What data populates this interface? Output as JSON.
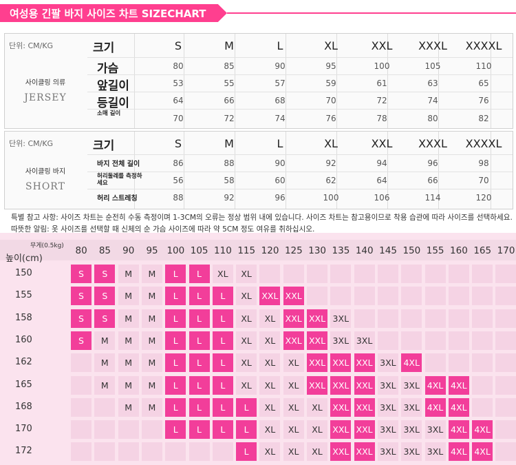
{
  "header": {
    "title": "여성용 긴팔 바지 사이즈 차트 SIZECHART"
  },
  "jersey": {
    "unit": "단위: CM/KG",
    "group_ko": "사이클링 의류",
    "group_en": "JERSEY",
    "size_label": "크기",
    "sizes": [
      "S",
      "M",
      "L",
      "XL",
      "XXL",
      "XXXL",
      "XXXXL"
    ],
    "rows": [
      {
        "label": "가슴",
        "values": [
          "80",
          "85",
          "90",
          "95",
          "100",
          "105",
          "110"
        ]
      },
      {
        "label": "앞길이",
        "values": [
          "53",
          "55",
          "57",
          "59",
          "61",
          "63",
          "65"
        ]
      },
      {
        "label": "등길이",
        "values": [
          "64",
          "66",
          "68",
          "70",
          "72",
          "74",
          "76"
        ]
      },
      {
        "label": "소매 길이",
        "values": [
          "70",
          "72",
          "74",
          "76",
          "78",
          "80",
          "82"
        ]
      }
    ]
  },
  "short": {
    "unit": "단위: CM/KG",
    "group_ko": "사이클링 바지",
    "group_en": "SHORT",
    "size_label": "크기",
    "sizes": [
      "S",
      "M",
      "L",
      "XL",
      "XXL",
      "XXXL",
      "XXXXL"
    ],
    "rows": [
      {
        "label": "바지 전체 길이",
        "values": [
          "86",
          "88",
          "90",
          "92",
          "94",
          "96",
          "98"
        ]
      },
      {
        "label": "허리둘레를 측정하세요",
        "values": [
          "56",
          "58",
          "60",
          "62",
          "64",
          "66",
          "70"
        ]
      },
      {
        "label": "허리 스트레칭",
        "values": [
          "88",
          "92",
          "96",
          "100",
          "106",
          "114",
          "120"
        ]
      }
    ]
  },
  "note": "특별 참고 사항: 사이즈 차트는 순전히 수동 측정이며 1-3CM의 오류는 정상 범위 내에 있습니다. 사이즈 차트는 참고용이므로 착용 습관에 따라 사이즈를 선택하세요.  따뜻한 알림: 옷 사이즈를 선택할 때 신체의 순 가슴 사이즈에 따라 약 5CM 정도 여유를 취하십시오.",
  "grid": {
    "weight_label": "무게(0.5kg)",
    "height_label": "높이(cm)",
    "weights": [
      "80",
      "85",
      "90",
      "95",
      "100",
      "105",
      "110",
      "115",
      "120",
      "125",
      "130",
      "135",
      "140",
      "145",
      "150",
      "155",
      "160",
      "165",
      "170"
    ],
    "rows": [
      {
        "height": "150",
        "cells": [
          "S",
          "S",
          "M",
          "M",
          "L",
          "L",
          "XL",
          "XL",
          "",
          "",
          "",
          "",
          "",
          "",
          "",
          "",
          "",
          "",
          ""
        ]
      },
      {
        "height": "155",
        "cells": [
          "S",
          "S",
          "M",
          "M",
          "L",
          "L",
          "L",
          "XL",
          "XXL",
          "XXL",
          "",
          "",
          "",
          "",
          "",
          "",
          "",
          "",
          ""
        ]
      },
      {
        "height": "158",
        "cells": [
          "S",
          "S",
          "M",
          "M",
          "L",
          "L",
          "L",
          "XL",
          "XL",
          "XXL",
          "XXL",
          "3XL",
          "",
          "",
          "",
          "",
          "",
          "",
          ""
        ]
      },
      {
        "height": "160",
        "cells": [
          "S",
          "M",
          "M",
          "M",
          "L",
          "L",
          "L",
          "XL",
          "XL",
          "XXL",
          "XXL",
          "3XL",
          "3XL",
          "",
          "",
          "",
          "",
          "",
          ""
        ]
      },
      {
        "height": "162",
        "cells": [
          "",
          "M",
          "M",
          "M",
          "L",
          "L",
          "L",
          "XL",
          "XL",
          "XL",
          "XXL",
          "XXL",
          "XXL",
          "3XL",
          "4XL",
          "",
          "",
          "",
          ""
        ]
      },
      {
        "height": "165",
        "cells": [
          "",
          "M",
          "M",
          "M",
          "L",
          "L",
          "L",
          "XL",
          "XL",
          "XL",
          "XXL",
          "XXL",
          "XXL",
          "3XL",
          "3XL",
          "4XL",
          "4XL",
          "",
          ""
        ]
      },
      {
        "height": "168",
        "cells": [
          "",
          "",
          "M",
          "M",
          "L",
          "L",
          "L",
          "L",
          "XL",
          "XL",
          "XL",
          "XXL",
          "XXL",
          "3XL",
          "3XL",
          "4XL",
          "4XL",
          "",
          ""
        ]
      },
      {
        "height": "170",
        "cells": [
          "",
          "",
          "",
          "",
          "L",
          "L",
          "L",
          "L",
          "XL",
          "XL",
          "XL",
          "XXL",
          "XXL",
          "3XL",
          "3XL",
          "3XL",
          "4XL",
          "4XL",
          ""
        ]
      },
      {
        "height": "172",
        "cells": [
          "",
          "",
          "",
          "",
          "",
          "",
          "",
          "L",
          "XL",
          "XL",
          "XL",
          "XXL",
          "XXL",
          "3XL",
          "3XL",
          "3XL",
          "4XL",
          "4XL",
          ""
        ]
      }
    ],
    "colors": {
      "pink": "#f23e9a",
      "light": "#f5d3e4",
      "bg": "#fbe3ee"
    }
  }
}
